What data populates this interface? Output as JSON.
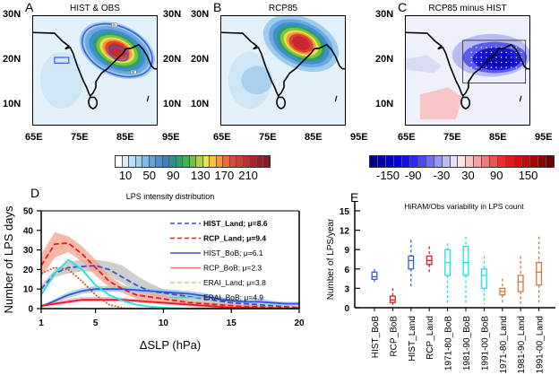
{
  "maps": {
    "lat_ticks": [
      "30N",
      "20N",
      "10N"
    ],
    "lon_ticks": [
      "65E",
      "75E",
      "85E",
      "95E"
    ],
    "panels": [
      {
        "letter": "A",
        "title": "HIST & OBS",
        "contour_labels": [
          "20",
          "68"
        ]
      },
      {
        "letter": "B",
        "title": "RCP85"
      },
      {
        "letter": "C",
        "title": "RCP85 minus HIST"
      }
    ],
    "colorbar_left": {
      "labels": [
        "10",
        "50",
        "90",
        "130",
        "170",
        "210"
      ],
      "colors": [
        "#ffffff",
        "#d9ecf8",
        "#bcdff3",
        "#9fd0ee",
        "#80bde6",
        "#5fa6db",
        "#4a8fd0",
        "#3f7fc4",
        "#2f8f8e",
        "#2da36b",
        "#3cb54a",
        "#74c043",
        "#b4d23f",
        "#e8e24b",
        "#f8c43a",
        "#f7973a",
        "#f06a36",
        "#e04a34",
        "#d53a35",
        "#c42b32",
        "#b21f2e",
        "#9c1a2a",
        "#8a1526"
      ]
    },
    "colorbar_right": {
      "labels": [
        "-150",
        "-90",
        "-30",
        "30",
        "90",
        "150"
      ],
      "colors": [
        "#00008b",
        "#0000a8",
        "#0000c8",
        "#0000e0",
        "#1010f0",
        "#2a2af5",
        "#4a4af5",
        "#6f6ff5",
        "#9595f5",
        "#bcbcf5",
        "#e2e2f8",
        "#fbe4e4",
        "#f9c2c2",
        "#f79d9d",
        "#f57878",
        "#f45050",
        "#f52a2a",
        "#f01414",
        "#dc0a0a",
        "#c40808",
        "#a80505",
        "#8c0303",
        "#700000"
      ]
    }
  },
  "chart_data": [
    {
      "type": "line",
      "panel": "D",
      "title": "LPS intensity distribution",
      "xlabel": "ΔSLP (hPa)",
      "ylabel": "Number of LPS days",
      "xlim": [
        1,
        20
      ],
      "ylim": [
        0,
        50
      ],
      "xticks": [
        1,
        5,
        10,
        15,
        20
      ],
      "yticks": [
        0,
        10,
        20,
        30,
        40,
        50
      ],
      "grid": false,
      "legend_position": "top-right",
      "x": [
        1,
        2,
        3,
        4,
        5,
        6,
        7,
        8,
        9,
        10,
        11,
        12,
        13,
        14,
        15,
        16,
        17,
        18,
        19,
        20
      ],
      "series": [
        {
          "name": "HIST_Land; μ=8.6",
          "color": "#3b4fd6",
          "dash": true,
          "values": [
            10,
            18,
            21,
            21.5,
            22,
            20,
            16,
            12,
            9,
            8,
            7,
            6,
            5,
            4,
            3,
            2.5,
            2,
            1.5,
            1,
            0.5
          ],
          "band": {
            "color": "#bdbdbd",
            "lower": [
              8,
              16,
              18,
              19,
              19,
              17,
              13,
              9,
              7,
              6,
              5,
              4,
              3,
              2,
              1.5,
              1,
              1,
              0.5,
              0.5,
              0
            ],
            "upper": [
              12,
              20,
              24,
              25,
              25,
              24,
              22,
              17,
              13,
              10,
              9,
              8,
              7,
              6,
              5,
              4,
              3,
              2.5,
              2,
              1.5
            ]
          }
        },
        {
          "name": "RCP_Land; μ=9.4",
          "color": "#e41a1c",
          "dash": true,
          "values": [
            22,
            33,
            33.5,
            28,
            21,
            14,
            10,
            7,
            6,
            5,
            4,
            3,
            2.5,
            2,
            1.5,
            1,
            1,
            0.5,
            0.5,
            0.3
          ]
        },
        {
          "name": "HIST_BoB; μ=6.1",
          "color": "#3b4fd6",
          "dash": false,
          "values": [
            1,
            4,
            7,
            9,
            10,
            10,
            10,
            9.5,
            9,
            8.5,
            8,
            7.5,
            6.5,
            5,
            4,
            3.5,
            3.5,
            3,
            2.5,
            2.5
          ],
          "band": {
            "color": "#9ccbe0",
            "lower": [
              0.5,
              3,
              5.5,
              7.5,
              8.5,
              8.5,
              8.5,
              8,
              7.5,
              7,
              6.5,
              6,
              5,
              4,
              3,
              2.5,
              2.5,
              2,
              1.5,
              1.5
            ],
            "upper": [
              1.5,
              5,
              8.5,
              10.5,
              11.5,
              11.5,
              11.5,
              11,
              10.5,
              10,
              9.5,
              9,
              8,
              6.5,
              5,
              4.5,
              5.5,
              4,
              3.5,
              3.5
            ]
          }
        },
        {
          "name": "RCP_BoB; μ=2.3",
          "color": "#e41a1c",
          "dash": false,
          "values": [
            1.5,
            2.5,
            3.5,
            4.5,
            4.5,
            4.5,
            4.5,
            4,
            3.5,
            3,
            2.5,
            2,
            1.5,
            1,
            0.5,
            0.5,
            0.3,
            0.2,
            0.1,
            0.1
          ],
          "band": {
            "color": "#f4a9b8",
            "lower": [
              1,
              1.5,
              2.5,
              3.5,
              3.5,
              3.5,
              3.5,
              3,
              2.5,
              2,
              1.5,
              1,
              0.5,
              0.3,
              0.2,
              0.1,
              0.1,
              0,
              0,
              0
            ],
            "upper": [
              2,
              3.5,
              5,
              6,
              6,
              6,
              5.5,
              5,
              4.5,
              4,
              3.5,
              3,
              2.5,
              2,
              1,
              1,
              0.5,
              0.4,
              0.3,
              0.2
            ]
          }
        },
        {
          "name": "ERAI_Land; μ=3.8",
          "color": "#b8641e",
          "dash": true,
          "values": [
            18,
            21,
            20,
            14,
            7,
            2,
            0.3,
            0,
            0,
            0,
            0,
            0,
            0,
            0,
            0,
            0,
            0,
            0,
            0,
            0
          ]
        },
        {
          "name": "ERAI_BoB; μ=4.9",
          "color": "#1de3e3",
          "dash": false,
          "values": [
            7,
            18,
            25,
            20,
            12,
            7,
            4,
            2,
            1,
            0.5,
            0.2,
            0,
            0,
            0,
            0,
            0,
            0,
            0,
            0,
            0
          ]
        }
      ],
      "rcp_land_band": {
        "color": "#f7a08a",
        "lower": [
          16,
          26,
          29,
          24,
          17,
          11,
          8,
          5,
          4,
          3,
          2.5,
          2,
          1.5,
          1,
          0.8,
          0.5,
          0.3,
          0.2,
          0.1,
          0
        ],
        "upper": [
          28,
          39,
          37,
          32,
          25,
          17,
          12,
          9,
          8,
          7,
          5.5,
          4,
          3.5,
          3,
          2.5,
          2,
          1.5,
          1,
          0.8,
          0.5
        ]
      }
    },
    {
      "type": "box",
      "panel": "E",
      "title": "HiRAM/Obs variability in LPS count",
      "xlabel": "",
      "ylabel": "Number of LPS/year",
      "ylim": [
        0,
        15
      ],
      "yticks": [
        0,
        3,
        6,
        9,
        12,
        15
      ],
      "categories": [
        "HIST_BoB",
        "RCP_BoB",
        "HIST_Land",
        "RCP_Land",
        "1971-80_BoB",
        "1981-90_BoB",
        "1991-00_BoB",
        "1971-80_Land",
        "1981-90_Land",
        "1991-00_Land"
      ],
      "boxes": [
        {
          "label": "HIST_BoB",
          "color": "#3b5bd6",
          "min": 4,
          "q1": 4.4,
          "median": 4.8,
          "q3": 5.5,
          "max": 6
        },
        {
          "label": "RCP_BoB",
          "color": "#e41a1c",
          "min": 0.4,
          "q1": 0.8,
          "median": 1.2,
          "q3": 1.8,
          "max": 3
        },
        {
          "label": "HIST_Land",
          "color": "#3b5bd6",
          "min": 3,
          "q1": 6,
          "median": 7.3,
          "q3": 8,
          "max": 10.5
        },
        {
          "label": "RCP_Land",
          "color": "#e41a1c",
          "min": 5.5,
          "q1": 6.7,
          "median": 7.3,
          "q3": 8,
          "max": 9.5
        },
        {
          "label": "1971-80_BoB",
          "color": "#1de3e3",
          "min": 0.5,
          "q1": 5,
          "median": 7,
          "q3": 9,
          "max": 10
        },
        {
          "label": "1981-90_BoB",
          "color": "#1de3e3",
          "min": 0.5,
          "q1": 5,
          "median": 7,
          "q3": 9.5,
          "max": 11
        },
        {
          "label": "1991-00_BoB",
          "color": "#1de3e3",
          "min": 0.5,
          "q1": 3,
          "median": 5,
          "q3": 6,
          "max": 8
        },
        {
          "label": "1971-80_Land",
          "color": "#cc7a3a",
          "min": 0.5,
          "q1": 2,
          "median": 2.5,
          "q3": 3,
          "max": 4.5
        },
        {
          "label": "1981-90_Land",
          "color": "#cc7a3a",
          "min": 0.5,
          "q1": 2.5,
          "median": 4,
          "q3": 5,
          "max": 8
        },
        {
          "label": "1991-00_Land",
          "color": "#cc7a3a",
          "min": 0.5,
          "q1": 3.5,
          "median": 5.5,
          "q3": 7,
          "max": 11
        }
      ]
    }
  ],
  "panel_d_letter": "D",
  "panel_e_letter": "E"
}
